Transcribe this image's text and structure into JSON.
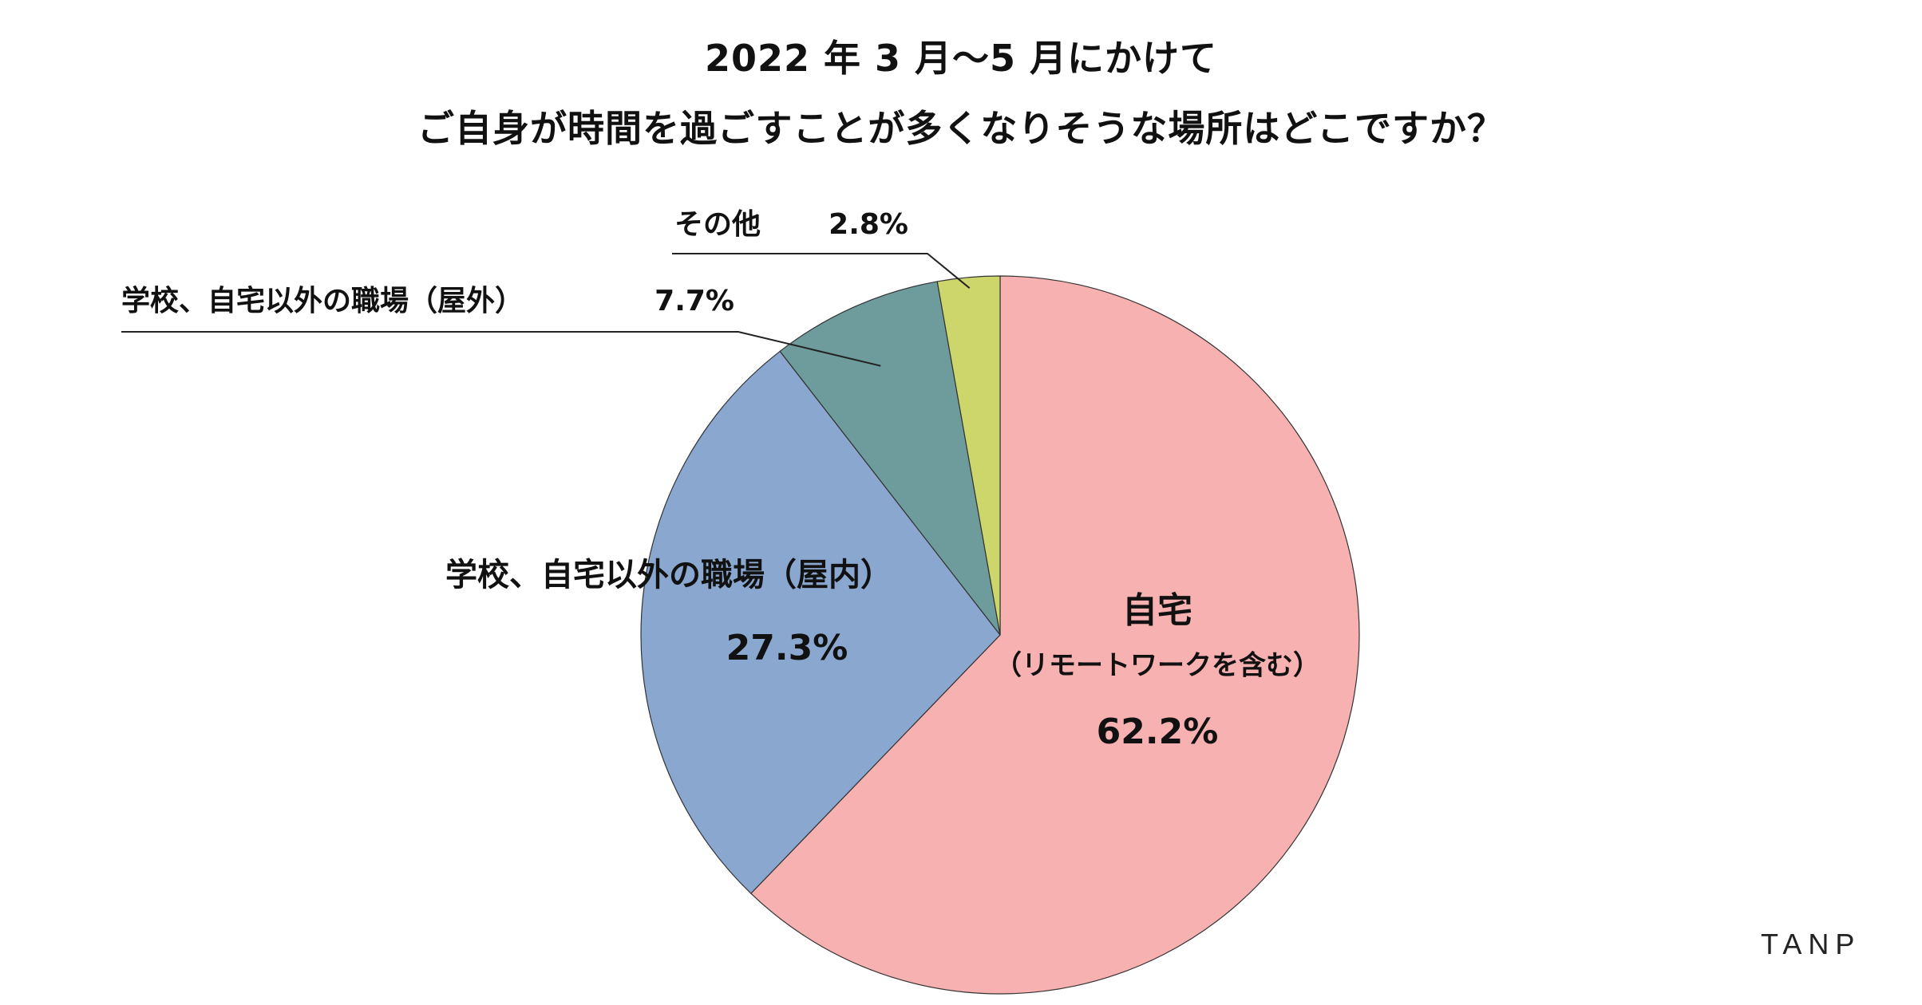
{
  "title_lines": [
    "2022 年 3 月〜5 月にかけて",
    "ご自身が時間を過ごすことが多くなりそうな場所はどこですか？"
  ],
  "brand": "TANP",
  "chart_data": {
    "type": "pie",
    "title": "2022 年 3 月〜5 月にかけて ご自身が時間を過ごすことが多くなりそうな場所はどこですか？",
    "start": "12 o'clock",
    "direction": "clockwise",
    "legend": "none",
    "slices": [
      {
        "label_lines": [
          "自宅",
          "（リモートワークを含む）"
        ],
        "value": 62.2,
        "value_label": "62.2%",
        "color": "#F7B1B1",
        "label_position": "inside"
      },
      {
        "label_lines": [
          "学校、自宅以外の職場（屋内）"
        ],
        "value": 27.3,
        "value_label": "27.3%",
        "color": "#8AA7D0",
        "label_position": "inside"
      },
      {
        "label_lines": [
          "学校、自宅以外の職場（屋外）"
        ],
        "value": 7.7,
        "value_label": "7.7%",
        "color": "#6E9B9C",
        "label_position": "outside-leader"
      },
      {
        "label_lines": [
          "その他"
        ],
        "value": 2.8,
        "value_label": "2.8%",
        "color": "#CCD66A",
        "label_position": "outside-leader"
      }
    ]
  }
}
